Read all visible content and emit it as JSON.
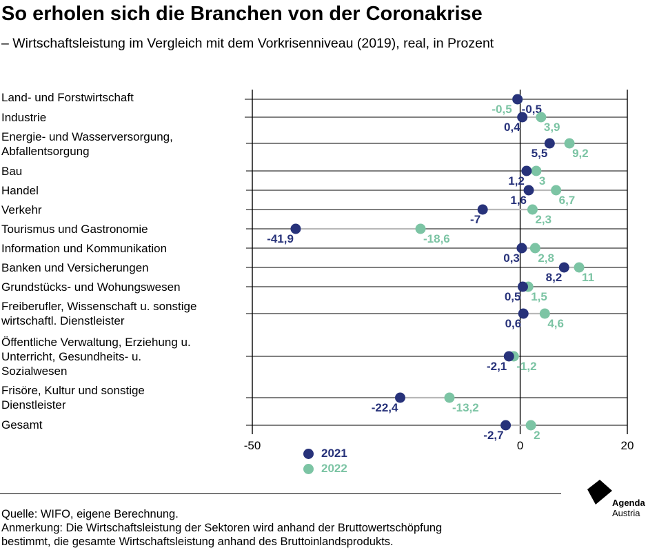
{
  "header": {
    "title": "So erholen sich die Branchen von der Coronakrise",
    "subtitle": "– Wirtschaftsleistung im Vergleich mit dem Vorkrisenniveau (2019), real, in Prozent"
  },
  "colors": {
    "series_2021": "#27327a",
    "series_2022": "#7cc4a4",
    "connector": "#b8b8b8",
    "axis": "#000000",
    "logo": "#000000"
  },
  "chart_data": {
    "type": "dot-plot",
    "title": "So erholen sich die Branchen von der Coronakrise",
    "subtitle": "– Wirtschaftsleistung im Vergleich mit dem Vorkrisenniveau (2019), real, in Prozent",
    "xlim": [
      -50,
      20
    ],
    "xticks": [
      "-50",
      "0",
      "20"
    ],
    "orientation": "horizontal",
    "grid": "horizontal lines per category",
    "legend_position": "bottom-center",
    "categories": [
      "Land- und Forstwirtschaft",
      "Industrie",
      "Energie- und Wasserversorgung,\nAbfallentsorgung",
      "Bau",
      "Handel",
      "Verkehr",
      "Tourismus und Gastronomie",
      "Information und Kommunikation",
      "Banken und Versicherungen",
      "Grundstücks- und Wohungswesen",
      "Freiberufler, Wissenschaft u. sonstige\nwirtschaftl. Dienstleister",
      "Öffentliche Verwaltung, Erziehung u.\nUnterricht, Gesundheits- u.\nSozialwesen",
      "Frisöre, Kultur und sonstige\nDienstleister",
      "Gesamt"
    ],
    "series": [
      {
        "name": "2021",
        "values": [
          -0.5,
          0.4,
          5.5,
          1.2,
          1.6,
          -7,
          -41.9,
          0.3,
          8.2,
          0.5,
          0.6,
          -2.1,
          -22.4,
          -2.7
        ],
        "labels": [
          "-0,5",
          "0,4",
          "5,5",
          "1,2",
          "1,6",
          "-7",
          "-41,9",
          "0,3",
          "8,2",
          "0,5",
          "0,6",
          "-2,1",
          "-22,4",
          "-2,7"
        ]
      },
      {
        "name": "2022",
        "values": [
          -0.5,
          3.9,
          9.2,
          3,
          6.7,
          2.3,
          -18.6,
          2.8,
          11,
          1.5,
          4.6,
          -1.2,
          -13.2,
          2
        ],
        "labels": [
          "-0,5",
          "3,9",
          "9,2",
          "3",
          "6,7",
          "2,3",
          "-18,6",
          "2,8",
          "11",
          "1,5",
          "4,6",
          "-1,2",
          "-13,2",
          "2"
        ]
      }
    ]
  },
  "footer": {
    "source": "Quelle: WIFO, eigene Berechnung.",
    "note_line1": "Anmerkung: Die Wirtschaftsleistung der Sektoren wird anhand der Bruttowertschöpfung",
    "note_line2": "bestimmt, die gesamte Wirtschaftsleistung anhand des Bruttoinlandsprodukts."
  },
  "logo": {
    "line1": "Agenda",
    "line2": "Austria",
    "icon": "agenda-austria-logo"
  }
}
